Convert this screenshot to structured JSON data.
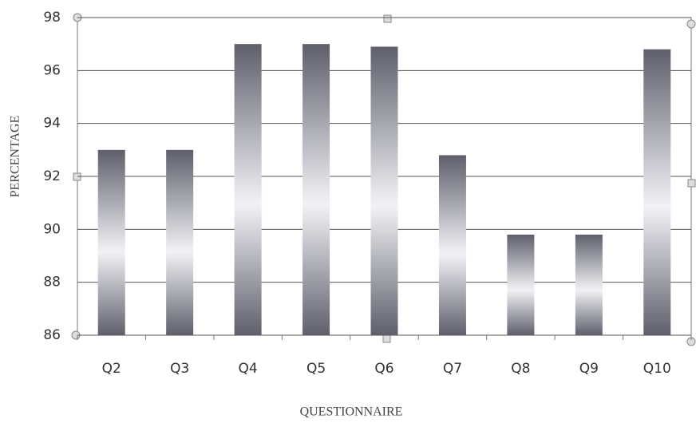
{
  "chart_data": {
    "type": "bar",
    "categories": [
      "Q2",
      "Q3",
      "Q4",
      "Q5",
      "Q6",
      "Q7",
      "Q8",
      "Q9",
      "Q10"
    ],
    "values": [
      93,
      93,
      97,
      97,
      96.9,
      92.8,
      89.8,
      89.8,
      96.8
    ],
    "color": "#5f5f6c",
    "ylim": [
      86,
      98
    ],
    "yticks": [
      86,
      88,
      90,
      92,
      94,
      96,
      98
    ],
    "grid": true,
    "y_label": "PERCENTAGE",
    "x_label": "QUESTIONNAIRE"
  }
}
